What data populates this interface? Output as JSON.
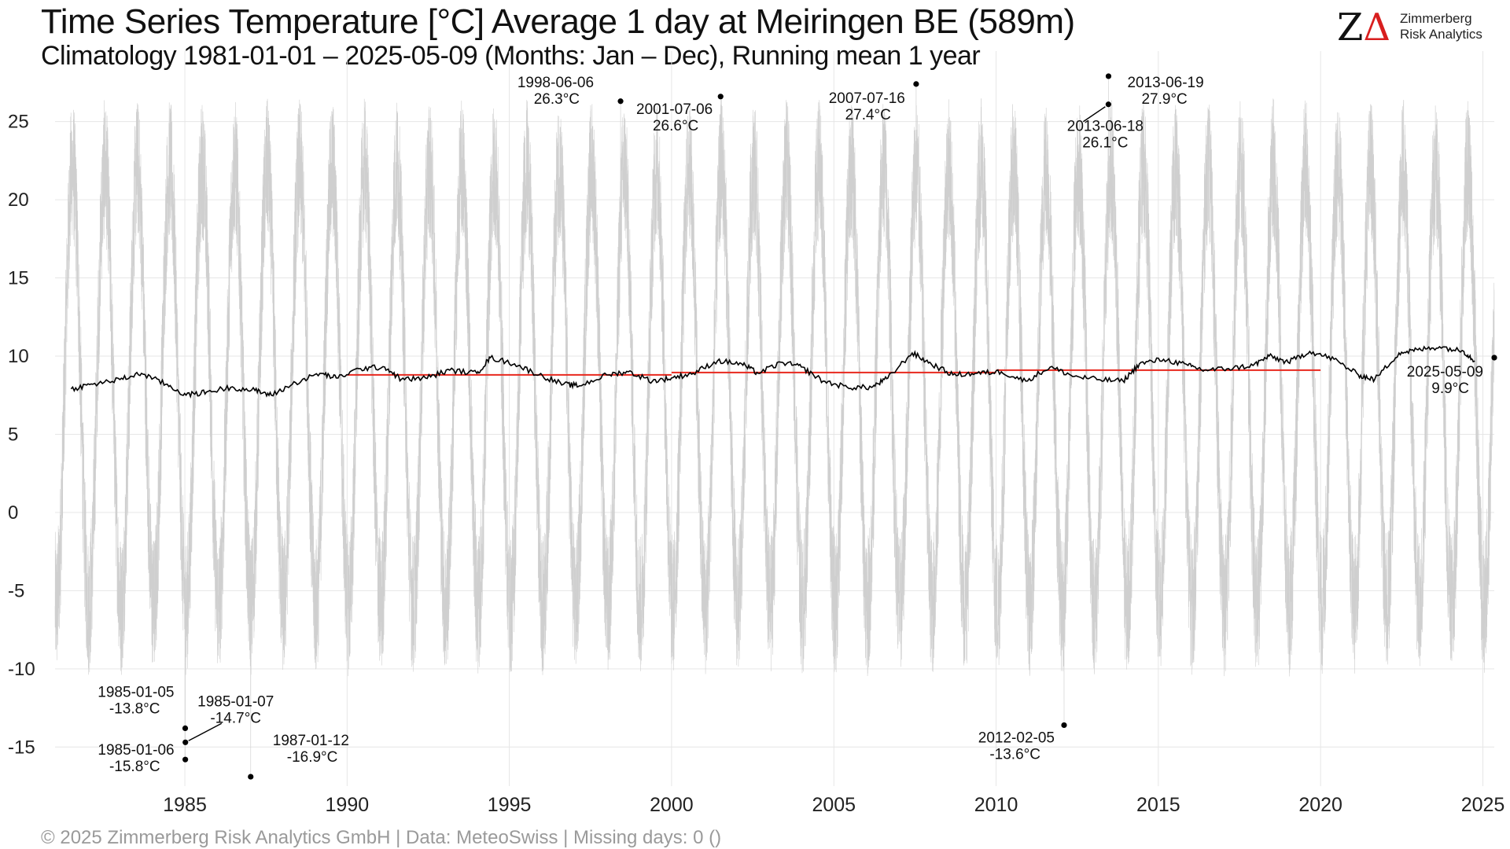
{
  "header": {
    "title": "Time Series Temperature [°C] Average 1 day at Meiringen  BE (589m)",
    "subtitle": "Climatology 1981-01-01 – 2025-05-09 (Months: Jan – Dec), Running mean 1 year"
  },
  "logo": {
    "mark_z": "Z",
    "mark_delta": "Δ",
    "line1": "Zimmerberg",
    "line2": "Risk Analytics"
  },
  "footer": {
    "caption": "©  2025 Zimmerberg Risk Analytics GmbH | Data: MeteoSwiss | Missing days: 0 ()"
  },
  "colors": {
    "daily_series": "#cfcfcf",
    "running_mean": "#000000",
    "trend_segments": "#e8281e",
    "grid": "#e6e6e6",
    "logo_accent": "#d81e1e"
  },
  "chart_data": {
    "type": "line",
    "x_axis": {
      "type": "time",
      "range": [
        "1981-01-01",
        "2025-05-09"
      ],
      "ticks": [
        "1985",
        "1990",
        "1995",
        "2000",
        "2005",
        "2010",
        "2015",
        "2020",
        "2025"
      ]
    },
    "y_axis": {
      "range": [
        -17.5,
        28.5
      ],
      "ticks": [
        -15,
        -10,
        -5,
        0,
        5,
        10,
        15,
        20,
        25
      ],
      "tick_labels": [
        "-15",
        "-10",
        "-5",
        "0",
        "5",
        "10",
        "15",
        "20",
        "25"
      ]
    },
    "grid": true,
    "series": [
      {
        "kind": "daily",
        "color": "#cfcfcf",
        "typical_summer_peak": 22,
        "typical_winter_trough": -6,
        "points": [
          [
            "1981-01-01",
            -6
          ],
          [
            "1983-07-20",
            25.8
          ],
          [
            "1985-01-06",
            -15.8
          ],
          [
            "1987-01-12",
            -16.9
          ],
          [
            "1991-06-15",
            23
          ],
          [
            "1994-08-02",
            24.6
          ],
          [
            "1998-06-06",
            26.3
          ],
          [
            "2001-07-06",
            26.6
          ],
          [
            "2003-08-10",
            25
          ],
          [
            "2007-07-16",
            27.4
          ],
          [
            "2012-02-05",
            -13.6
          ],
          [
            "2013-06-19",
            27.9
          ],
          [
            "2015-07-05",
            25.5
          ],
          [
            "2019-06-27",
            25.8
          ],
          [
            "2022-07-20",
            24.5
          ],
          [
            "2025-05-09",
            9.9
          ]
        ]
      },
      {
        "kind": "running_mean_1_year",
        "color": "#000000",
        "points": [
          [
            "1981-07-01",
            7.9
          ],
          [
            "1982-03-01",
            8.2
          ],
          [
            "1983-01-01",
            8.5
          ],
          [
            "1983-09-01",
            8.9
          ],
          [
            "1984-06-01",
            8.2
          ],
          [
            "1985-01-15",
            7.5
          ],
          [
            "1985-09-01",
            7.7
          ],
          [
            "1986-06-01",
            8.0
          ],
          [
            "1987-03-01",
            7.8
          ],
          [
            "1987-09-01",
            7.5
          ],
          [
            "1988-06-01",
            8.3
          ],
          [
            "1989-03-01",
            8.9
          ],
          [
            "1989-09-01",
            8.6
          ],
          [
            "1990-06-01",
            9.2
          ],
          [
            "1991-03-01",
            9.3
          ],
          [
            "1991-09-01",
            8.5
          ],
          [
            "1992-06-01",
            8.6
          ],
          [
            "1993-03-01",
            9.1
          ],
          [
            "1994-01-01",
            8.9
          ],
          [
            "1994-06-01",
            9.9
          ],
          [
            "1995-03-01",
            9.5
          ],
          [
            "1995-12-01",
            8.8
          ],
          [
            "1996-09-01",
            8.2
          ],
          [
            "1997-03-01",
            8.1
          ],
          [
            "1998-01-01",
            8.8
          ],
          [
            "1998-09-01",
            9.0
          ],
          [
            "1999-06-01",
            8.4
          ],
          [
            "2000-01-01",
            8.6
          ],
          [
            "2000-09-01",
            8.9
          ],
          [
            "2001-06-01",
            9.7
          ],
          [
            "2002-03-01",
            9.5
          ],
          [
            "2002-09-01",
            8.9
          ],
          [
            "2003-06-01",
            9.6
          ],
          [
            "2004-01-01",
            9.3
          ],
          [
            "2004-09-01",
            8.4
          ],
          [
            "2005-06-01",
            8.0
          ],
          [
            "2006-03-01",
            8.0
          ],
          [
            "2006-09-01",
            8.6
          ],
          [
            "2007-06-01",
            10.2
          ],
          [
            "2008-01-01",
            9.5
          ],
          [
            "2008-09-01",
            8.8
          ],
          [
            "2009-06-01",
            8.9
          ],
          [
            "2010-03-01",
            9.0
          ],
          [
            "2010-12-01",
            8.4
          ],
          [
            "2011-09-01",
            9.3
          ],
          [
            "2012-06-01",
            8.7
          ],
          [
            "2013-03-01",
            8.5
          ],
          [
            "2013-12-01",
            8.4
          ],
          [
            "2014-06-01",
            9.5
          ],
          [
            "2015-03-01",
            9.8
          ],
          [
            "2015-12-01",
            9.4
          ],
          [
            "2016-06-01",
            9.1
          ],
          [
            "2017-03-01",
            9.2
          ],
          [
            "2017-12-01",
            9.4
          ],
          [
            "2018-06-01",
            10.0
          ],
          [
            "2019-01-01",
            9.6
          ],
          [
            "2019-09-01",
            10.3
          ],
          [
            "2020-06-01",
            9.8
          ],
          [
            "2021-03-01",
            8.8
          ],
          [
            "2021-09-01",
            8.5
          ],
          [
            "2022-06-01",
            10.2
          ],
          [
            "2023-01-01",
            10.4
          ],
          [
            "2023-09-01",
            10.6
          ],
          [
            "2024-06-01",
            10.3
          ],
          [
            "2024-10-01",
            9.7
          ]
        ]
      },
      {
        "kind": "decade_means",
        "color": "#e8281e",
        "segments": [
          {
            "from": "1990-01-01",
            "to": "2000-01-01",
            "value": 8.8
          },
          {
            "from": "2000-01-01",
            "to": "2010-01-01",
            "value": 8.95
          },
          {
            "from": "2010-01-01",
            "to": "2020-01-01",
            "value": 9.1
          }
        ]
      }
    ],
    "annotations": [
      {
        "date": "1998-06-06",
        "value": 26.3,
        "label_date": "1998-06-06",
        "label_value": "26.3°C"
      },
      {
        "date": "2001-07-06",
        "value": 26.6,
        "label_date": "2001-07-06",
        "label_value": "26.6°C"
      },
      {
        "date": "2007-07-16",
        "value": 27.4,
        "label_date": "2007-07-16",
        "label_value": "27.4°C"
      },
      {
        "date": "2013-06-19",
        "value": 27.9,
        "label_date": "2013-06-19",
        "label_value": "27.9°C"
      },
      {
        "date": "2013-06-18",
        "value": 26.1,
        "label_date": "2013-06-18",
        "label_value": "26.1°C"
      },
      {
        "date": "1985-01-05",
        "value": -13.8,
        "label_date": "1985-01-05",
        "label_value": "-13.8°C"
      },
      {
        "date": "1985-01-07",
        "value": -14.7,
        "label_date": "1985-01-07",
        "label_value": "-14.7°C"
      },
      {
        "date": "1985-01-06",
        "value": -15.8,
        "label_date": "1985-01-06",
        "label_value": "-15.8°C"
      },
      {
        "date": "1987-01-12",
        "value": -16.9,
        "label_date": "1987-01-12",
        "label_value": "-16.9°C"
      },
      {
        "date": "2012-02-05",
        "value": -13.6,
        "label_date": "2012-02-05",
        "label_value": "-13.6°C"
      },
      {
        "date": "2025-05-09",
        "value": 9.9,
        "label_date": "2025-05-09",
        "label_value": "9.9°C"
      }
    ]
  }
}
